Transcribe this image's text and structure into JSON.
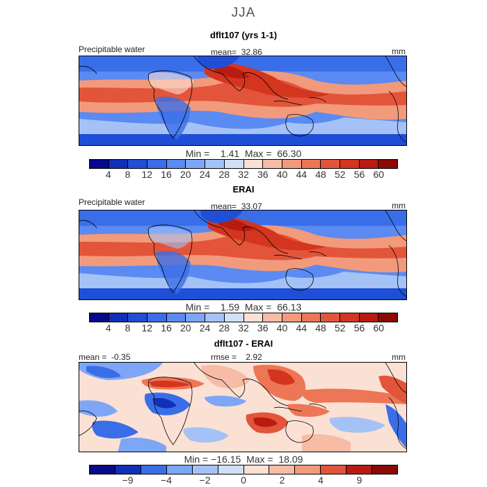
{
  "figure": {
    "season": "JJA"
  },
  "colors": {
    "fill_palette": [
      "#08088a",
      "#1030b8",
      "#1f4fd6",
      "#3a6ee8",
      "#5a8af2",
      "#7ea6f6",
      "#a4c2f6",
      "#cfe0f8",
      "#fbe0d4",
      "#f7bca6",
      "#f29a7c",
      "#ec7656",
      "#e2553a",
      "#d4351f",
      "#b81b10",
      "#8a0a05"
    ],
    "coastline": "#000000"
  },
  "panels": [
    {
      "title": "dflt107 (yrs 1-1)",
      "left_label": "Precipitable water",
      "center_label": "mean=  32.86",
      "right_label": "mm",
      "min_max": "Min =    1.41  Max =  66.30",
      "colorbar": {
        "ticks": [
          "4",
          "8",
          "12",
          "16",
          "20",
          "24",
          "28",
          "32",
          "36",
          "40",
          "44",
          "48",
          "52",
          "56",
          "60"
        ],
        "colors": [
          "#08088a",
          "#1030b8",
          "#1f4fd6",
          "#3a6ee8",
          "#5a8af2",
          "#7ea6f6",
          "#a4c2f6",
          "#cfe0f8",
          "#fbe0d4",
          "#f7bca6",
          "#f29a7c",
          "#ec7656",
          "#e2553a",
          "#d4351f",
          "#b81b10",
          "#8a0a05"
        ]
      }
    },
    {
      "title": "ERAI",
      "left_label": "Precipitable water",
      "center_label": "mean=  33.07",
      "right_label": "mm",
      "min_max": "Min =    1.59  Max =  66.13",
      "colorbar": {
        "ticks": [
          "4",
          "8",
          "12",
          "16",
          "20",
          "24",
          "28",
          "32",
          "36",
          "40",
          "44",
          "48",
          "52",
          "56",
          "60"
        ],
        "colors": [
          "#08088a",
          "#1030b8",
          "#1f4fd6",
          "#3a6ee8",
          "#5a8af2",
          "#7ea6f6",
          "#a4c2f6",
          "#cfe0f8",
          "#fbe0d4",
          "#f7bca6",
          "#f29a7c",
          "#ec7656",
          "#e2553a",
          "#d4351f",
          "#b81b10",
          "#8a0a05"
        ]
      }
    },
    {
      "title": "dflt107 - ERAI",
      "left_label": "mean =  -0.35",
      "center_label": "rmse =    2.92",
      "right_label": "mm",
      "min_max": "Min = −16.15  Max =  18.09",
      "colorbar": {
        "ticks": [
          "−9",
          "−4",
          "−2",
          "0",
          "2",
          "4",
          "9"
        ],
        "colors": [
          "#08088a",
          "#1030b8",
          "#3a6ee8",
          "#7ea6f6",
          "#a4c2f6",
          "#cfe0f8",
          "#fbe0d4",
          "#f7bca6",
          "#f29a7c",
          "#e2553a",
          "#b81b10",
          "#8a0a05"
        ]
      }
    }
  ]
}
